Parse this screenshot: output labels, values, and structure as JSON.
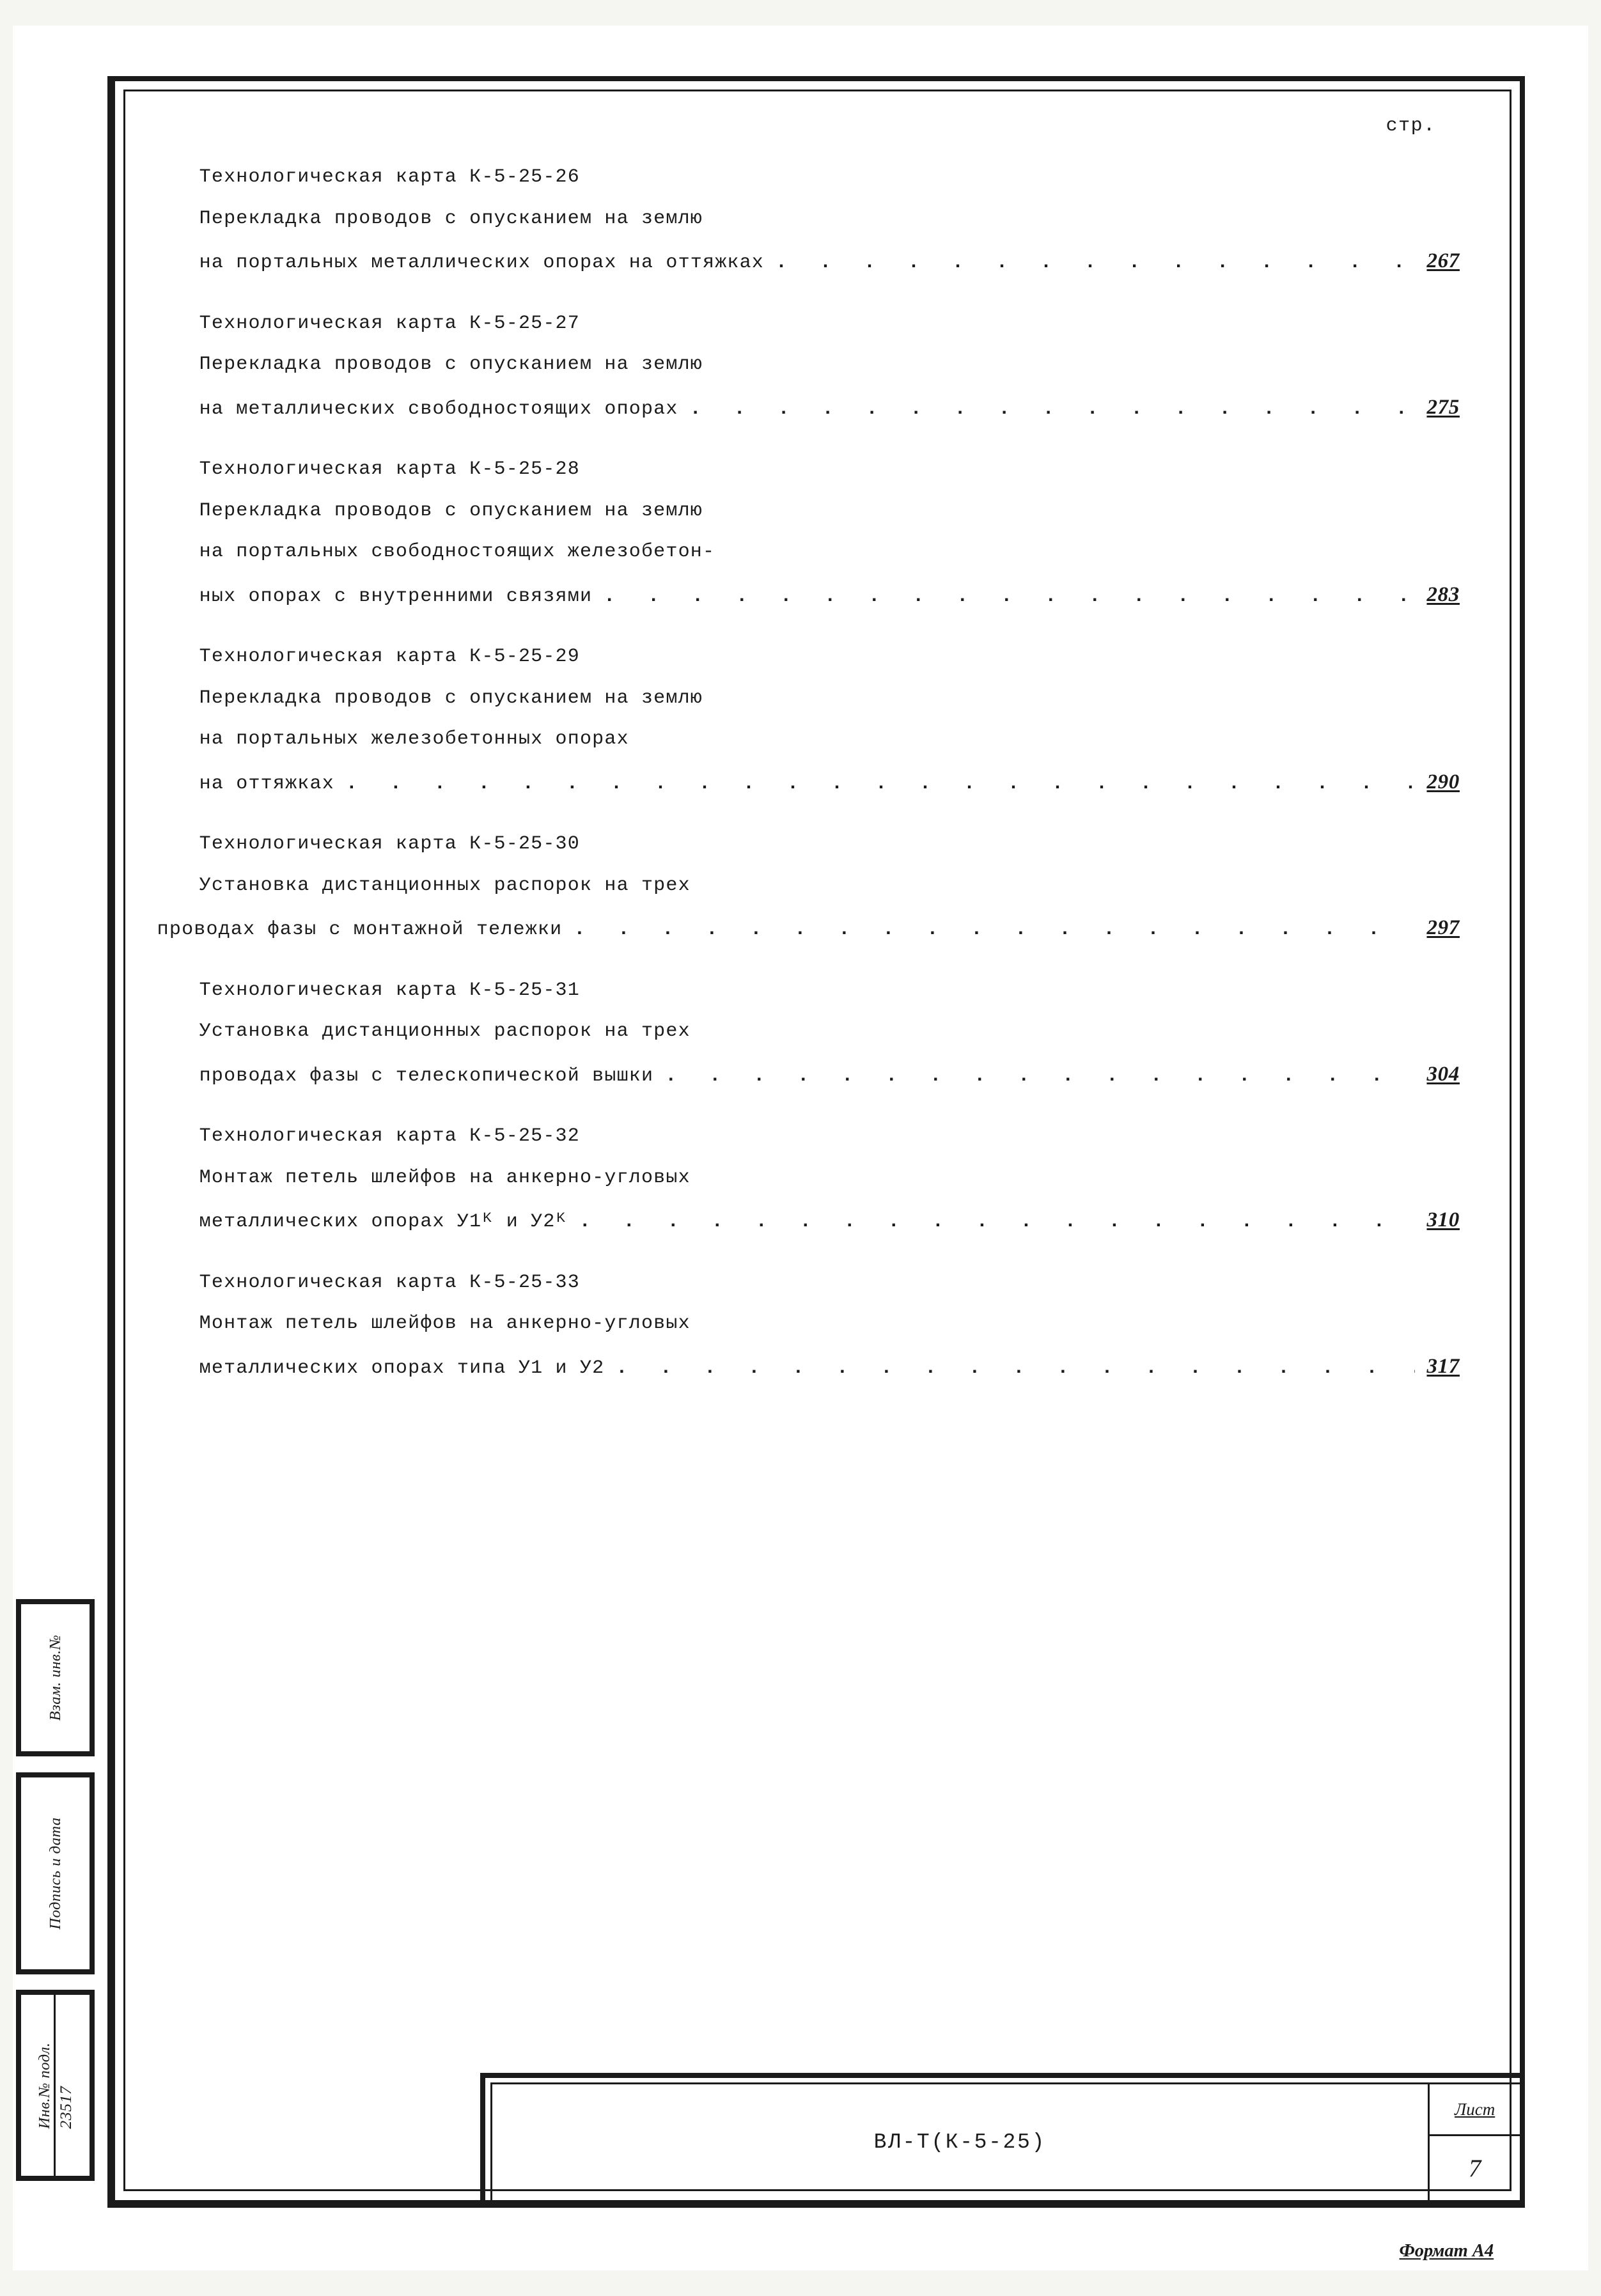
{
  "colors": {
    "paper": "#ffffff",
    "ink": "#1b1b1b",
    "scan_bg": "#f5f5f2"
  },
  "typography": {
    "body_font": "Courier New / typewriter",
    "body_size_pt": 14,
    "handwritten_font": "italic serif (manuscript)",
    "handwritten_size_pt": 16
  },
  "header": {
    "page_col_label": "стр."
  },
  "toc": [
    {
      "title": "Технологическая карта К-5-25-26",
      "body_lines": [
        "Перекладка проводов с опусканием на землю"
      ],
      "last_line": "на портальных металлических опорах на оттяжках",
      "page": "267",
      "outdent": false
    },
    {
      "title": "Технологическая карта К-5-25-27",
      "body_lines": [
        "Перекладка проводов с опусканием на землю"
      ],
      "last_line": "на металлических свободностоящих опорах",
      "page": "275",
      "outdent": false
    },
    {
      "title": "Технологическая карта К-5-25-28",
      "body_lines": [
        "Перекладка проводов с опусканием на землю",
        "на портальных свободностоящих железобетон-"
      ],
      "last_line": "ных опорах с внутренними связями",
      "page": "283",
      "outdent": false
    },
    {
      "title": "Технологическая карта К-5-25-29",
      "body_lines": [
        "Перекладка проводов с опусканием на землю",
        "на портальных железобетонных опорах"
      ],
      "last_line": "на оттяжках",
      "page": "290",
      "outdent": false
    },
    {
      "title": "Технологическая карта К-5-25-30",
      "body_lines": [
        "Установка дистанционных распорок на трех"
      ],
      "last_line": "проводах фазы с монтажной тележки",
      "page": "297",
      "outdent": true
    },
    {
      "title": "Технологическая карта К-5-25-31",
      "body_lines": [
        "Установка дистанционных распорок на трех"
      ],
      "last_line": "проводах фазы с телескопической вышки",
      "page": "304",
      "outdent": false
    },
    {
      "title": "Технологическая карта К-5-25-32",
      "body_lines": [
        "Монтаж петель шлейфов на анкерно-угловых"
      ],
      "last_line": "металлических опорах У1ᴷ и У2ᴷ",
      "page": "310",
      "outdent": false
    },
    {
      "title": "Технологическая карта К-5-25-33",
      "body_lines": [
        "Монтаж петель шлейфов на анкерно-угловых"
      ],
      "last_line": "металлических опорах типа У1 и У2",
      "page": "317",
      "outdent": false
    }
  ],
  "title_block": {
    "doc_code": "ВЛ-Т(К-5-25)",
    "sheet_label": "Лист",
    "sheet_number": "7"
  },
  "side_stamp": {
    "inv_label": "Инв.№ подл.",
    "inv_value": "23517",
    "sign_label": "Подпись и дата",
    "dup_label": "Взам. инв.№"
  },
  "footer_note": "Формат А4"
}
